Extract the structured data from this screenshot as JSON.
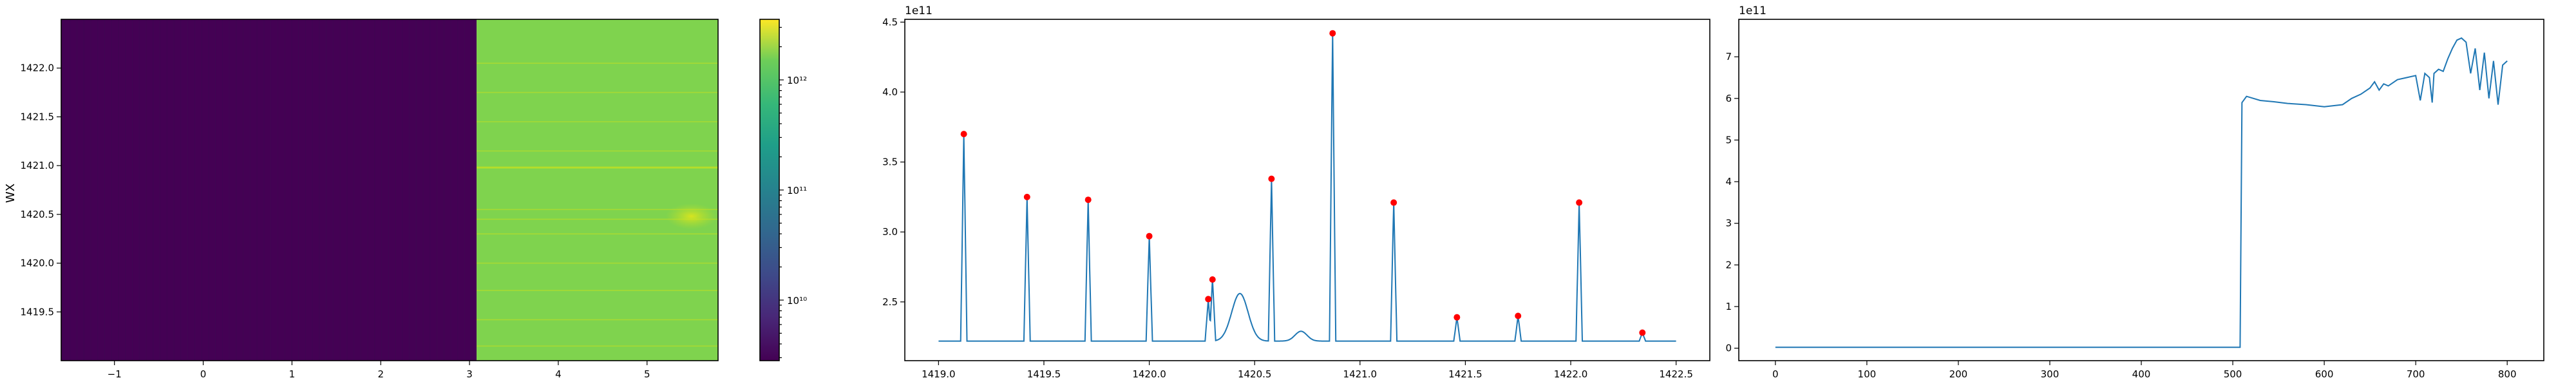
{
  "chart_data": [
    {
      "type": "heatmap",
      "ylabel": "WX",
      "x_ticks": [
        "−1",
        "0",
        "1",
        "2",
        "3",
        "4",
        "5"
      ],
      "x_tick_values": [
        -1,
        0,
        1,
        2,
        3,
        4,
        5
      ],
      "y_ticks": [
        "1419.5",
        "1420.0",
        "1420.5",
        "1421.0",
        "1421.5",
        "1422.0"
      ],
      "y_tick_values": [
        1419.5,
        1420.0,
        1420.5,
        1421.0,
        1421.5,
        1422.0
      ],
      "xlim": [
        -1.6,
        5.8
      ],
      "ylim": [
        1419.0,
        1422.5
      ],
      "colormap": "viridis",
      "transition_x": 3.08,
      "colors": {
        "low": "#440154",
        "high": "#7fd34e",
        "line_bright": "#b8de29",
        "hot": "#e1e61a"
      },
      "bright_lines": [
        1420.98,
        1420.55,
        1420.45,
        1421.15,
        1422.05,
        1421.75,
        1421.45,
        1420.3,
        1420.0,
        1419.72,
        1419.42,
        1419.15
      ],
      "colorbar": {
        "scale": "log",
        "ticks": [
          "10¹²",
          "10¹¹",
          "10¹⁰"
        ],
        "tick_exponents": [
          12,
          11,
          10
        ],
        "range_exponents": [
          9.45,
          12.55
        ]
      }
    },
    {
      "type": "line",
      "offset_label": "1e11",
      "x_ticks": [
        "1419.0",
        "1419.5",
        "1420.0",
        "1420.5",
        "1421.0",
        "1421.5",
        "1422.0",
        "1422.5"
      ],
      "x_tick_values": [
        1419.0,
        1419.5,
        1420.0,
        1420.5,
        1421.0,
        1421.5,
        1422.0,
        1422.5
      ],
      "y_ticks": [
        "2.5",
        "3.0",
        "3.5",
        "4.0",
        "4.5"
      ],
      "y_tick_values": [
        2.5,
        3.0,
        3.5,
        4.0,
        4.5
      ],
      "xlim": [
        1418.84,
        1422.66
      ],
      "ylim": [
        2.08,
        4.52
      ],
      "baseline": 2.22,
      "line_color": "#1f77b4",
      "peaks": [
        {
          "x": 1419.12,
          "y": 3.7
        },
        {
          "x": 1419.42,
          "y": 3.25
        },
        {
          "x": 1419.71,
          "y": 3.23
        },
        {
          "x": 1420.0,
          "y": 2.97
        },
        {
          "x": 1420.28,
          "y": 2.52
        },
        {
          "x": 1420.3,
          "y": 2.66
        },
        {
          "x": 1420.58,
          "y": 3.38
        },
        {
          "x": 1420.87,
          "y": 4.42
        },
        {
          "x": 1421.16,
          "y": 3.21
        },
        {
          "x": 1421.46,
          "y": 2.39
        },
        {
          "x": 1421.75,
          "y": 2.4
        },
        {
          "x": 1422.04,
          "y": 3.21
        },
        {
          "x": 1422.34,
          "y": 2.28
        }
      ],
      "bumps": [
        {
          "x": 1420.43,
          "y": 2.56,
          "width": 0.055
        },
        {
          "x": 1420.72,
          "y": 2.29,
          "width": 0.04
        }
      ],
      "marker_color": "#ff0000"
    },
    {
      "type": "line",
      "offset_label": "1e11",
      "x_ticks": [
        "0",
        "100",
        "200",
        "300",
        "400",
        "500",
        "600",
        "700",
        "800"
      ],
      "x_tick_values": [
        0,
        100,
        200,
        300,
        400,
        500,
        600,
        700,
        800
      ],
      "y_ticks": [
        "0",
        "1",
        "2",
        "3",
        "4",
        "5",
        "6",
        "7"
      ],
      "y_tick_values": [
        0,
        1,
        2,
        3,
        4,
        5,
        6,
        7
      ],
      "xlim": [
        -40,
        840
      ],
      "ylim": [
        -0.3,
        7.9
      ],
      "line_color": "#1f77b4",
      "x": [
        0,
        100,
        200,
        300,
        400,
        508,
        510,
        515,
        530,
        545,
        560,
        580,
        600,
        620,
        630,
        640,
        650,
        655,
        660,
        665,
        670,
        680,
        690,
        700,
        705,
        710,
        715,
        718,
        720,
        725,
        730,
        735,
        740,
        745,
        750,
        755,
        760,
        765,
        770,
        775,
        780,
        785,
        790,
        795,
        800
      ],
      "y": [
        0.02,
        0.02,
        0.02,
        0.02,
        0.02,
        0.02,
        5.9,
        6.05,
        5.95,
        5.92,
        5.88,
        5.85,
        5.8,
        5.85,
        6.0,
        6.1,
        6.25,
        6.4,
        6.2,
        6.35,
        6.3,
        6.45,
        6.5,
        6.55,
        5.95,
        6.6,
        6.5,
        5.9,
        6.6,
        6.7,
        6.65,
        6.95,
        7.2,
        7.4,
        7.45,
        7.35,
        6.6,
        7.2,
        6.2,
        7.1,
        6.0,
        6.9,
        5.85,
        6.8,
        6.9
      ]
    }
  ]
}
